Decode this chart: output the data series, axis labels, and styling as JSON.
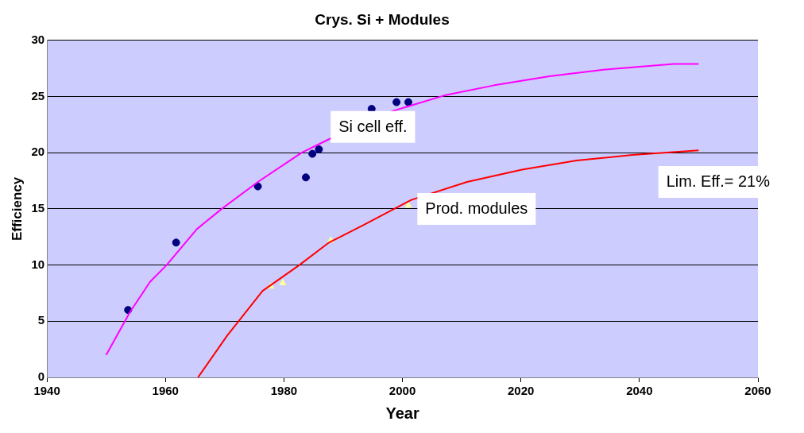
{
  "chart_data": {
    "type": "scatter",
    "title": "Crys. Si + Modules",
    "xlabel": "Year",
    "ylabel": "Efficiency",
    "xlim": [
      1940,
      2060
    ],
    "xticks": [
      1940,
      1960,
      1980,
      2000,
      2020,
      2040,
      2060
    ],
    "ylim": [
      0,
      30
    ],
    "yticks": [
      0,
      5,
      10,
      15,
      20,
      25,
      30
    ],
    "grid": "y",
    "legend": false,
    "series": [
      {
        "type": "line",
        "name": "Si cell eff.",
        "color": "#ff00ff",
        "marker": "none",
        "x": [
          1950,
          1954,
          1957.4,
          1960.2,
          1965.3,
          1969.5,
          1975.6,
          1983,
          1987.6,
          1998.3,
          2007.1,
          2015.5,
          2024.8,
          2034.2,
          2045.8,
          2050
        ],
        "values": [
          2.0,
          5.8,
          8.5,
          10,
          13.2,
          15.0,
          17.4,
          20.0,
          21.2,
          23.7,
          25.1,
          26.0,
          26.8,
          27.4,
          27.9,
          27.9
        ]
      },
      {
        "type": "line",
        "name": "Prod. modules",
        "color": "#ff0000",
        "marker": "none",
        "x": [
          1965.5,
          1970.4,
          1976.4,
          1982.6,
          1987.6,
          1993.2,
          2001.5,
          2010.9,
          2020.2,
          2029.4,
          2038.8,
          2050
        ],
        "values": [
          0,
          3.7,
          7.7,
          10,
          12.0,
          13.5,
          15.8,
          17.4,
          18.5,
          19.3,
          19.8,
          20.2
        ]
      },
      {
        "color": "#000080",
        "marker": "circle",
        "x": [
          1953.7,
          1961.8,
          1975.6,
          1983.7,
          1984.8,
          1985.9,
          1994.8,
          1999,
          2001
        ],
        "values": [
          6.0,
          12.0,
          17.0,
          17.8,
          19.9,
          20.3,
          23.9,
          24.5,
          24.5
        ]
      },
      {
        "color": "#ffff99",
        "marker": "triangle",
        "x": [
          1977.8,
          1979.8,
          1987.9,
          2001
        ],
        "values": [
          8.1,
          8.4,
          12.2,
          15.3
        ]
      }
    ],
    "annotations": [
      "Lim. Eff.= 21%"
    ]
  }
}
